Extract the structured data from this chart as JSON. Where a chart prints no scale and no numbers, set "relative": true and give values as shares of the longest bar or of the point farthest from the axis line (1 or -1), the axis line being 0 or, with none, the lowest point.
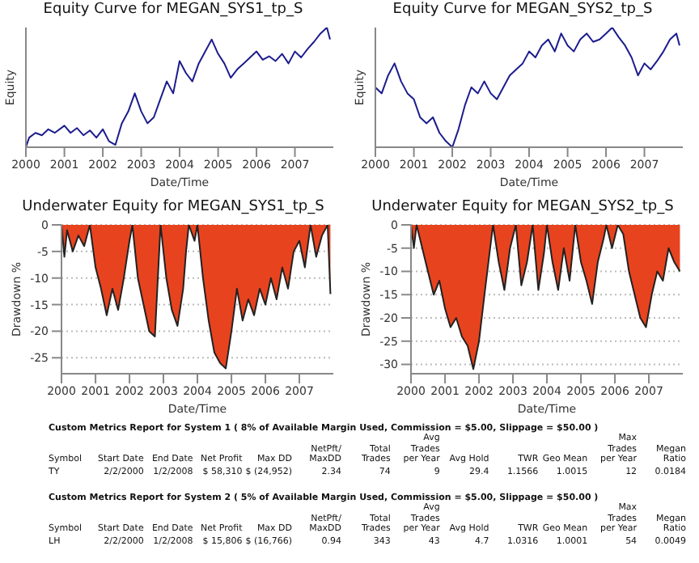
{
  "chart_data": [
    {
      "type": "line",
      "title": "Equity Curve for MEGAN_SYS1_tp_S",
      "xlabel": "Date/Time",
      "ylabel": "Equity",
      "relative": true,
      "color": "#1c1c8e",
      "xlim": [
        "2000-01",
        "2008-01"
      ],
      "xticks": [
        "2000",
        "2001",
        "2002",
        "2003",
        "2004",
        "2005",
        "2006",
        "2007"
      ],
      "x": [
        "2000-01",
        "2000-02",
        "2000-04",
        "2000-06",
        "2000-08",
        "2000-10",
        "2001-01",
        "2001-03",
        "2001-05",
        "2001-07",
        "2001-09",
        "2001-11",
        "2002-01",
        "2002-03",
        "2002-05",
        "2002-07",
        "2002-09",
        "2002-11",
        "2003-01",
        "2003-03",
        "2003-05",
        "2003-07",
        "2003-09",
        "2003-11",
        "2004-01",
        "2004-03",
        "2004-05",
        "2004-07",
        "2004-09",
        "2004-11",
        "2005-01",
        "2005-03",
        "2005-05",
        "2005-07",
        "2005-09",
        "2005-11",
        "2006-01",
        "2006-03",
        "2006-05",
        "2006-07",
        "2006-09",
        "2006-11",
        "2007-01",
        "2007-03",
        "2007-05",
        "2007-07",
        "2007-09",
        "2007-11",
        "2007-12"
      ],
      "values": [
        0,
        0.08,
        0.12,
        0.1,
        0.15,
        0.12,
        0.18,
        0.12,
        0.16,
        0.1,
        0.14,
        0.08,
        0.15,
        0.05,
        0.02,
        0.2,
        0.3,
        0.45,
        0.3,
        0.2,
        0.25,
        0.4,
        0.55,
        0.45,
        0.72,
        0.62,
        0.55,
        0.7,
        0.8,
        0.9,
        0.78,
        0.7,
        0.58,
        0.65,
        0.7,
        0.75,
        0.8,
        0.73,
        0.76,
        0.72,
        0.78,
        0.7,
        0.8,
        0.75,
        0.82,
        0.88,
        0.95,
        1,
        0.9
      ]
    },
    {
      "type": "line",
      "title": "Equity Curve for MEGAN_SYS2_tp_S",
      "xlabel": "Date/Time",
      "ylabel": "Equity",
      "relative": true,
      "color": "#1c1c8e",
      "xlim": [
        "2000-01",
        "2008-01"
      ],
      "xticks": [
        "2000",
        "2001",
        "2002",
        "2003",
        "2004",
        "2005",
        "2006",
        "2007"
      ],
      "x": [
        "2000-01",
        "2000-03",
        "2000-05",
        "2000-07",
        "2000-09",
        "2000-11",
        "2001-01",
        "2001-03",
        "2001-05",
        "2001-07",
        "2001-09",
        "2001-11",
        "2002-01",
        "2002-03",
        "2002-05",
        "2002-07",
        "2002-09",
        "2002-11",
        "2003-01",
        "2003-03",
        "2003-05",
        "2003-07",
        "2003-09",
        "2003-11",
        "2004-01",
        "2004-03",
        "2004-05",
        "2004-07",
        "2004-09",
        "2004-11",
        "2005-01",
        "2005-03",
        "2005-05",
        "2005-07",
        "2005-09",
        "2005-11",
        "2006-01",
        "2006-03",
        "2006-05",
        "2006-07",
        "2006-09",
        "2006-11",
        "2007-01",
        "2007-03",
        "2007-05",
        "2007-07",
        "2007-09",
        "2007-11",
        "2007-12"
      ],
      "values": [
        0.5,
        0.45,
        0.6,
        0.7,
        0.55,
        0.45,
        0.4,
        0.25,
        0.2,
        0.25,
        0.12,
        0.05,
        0,
        0.15,
        0.35,
        0.5,
        0.45,
        0.55,
        0.45,
        0.4,
        0.5,
        0.6,
        0.65,
        0.7,
        0.8,
        0.75,
        0.85,
        0.9,
        0.8,
        0.95,
        0.85,
        0.8,
        0.9,
        0.95,
        0.88,
        0.9,
        0.95,
        1,
        0.92,
        0.85,
        0.75,
        0.6,
        0.7,
        0.65,
        0.72,
        0.8,
        0.9,
        0.95,
        0.85
      ]
    },
    {
      "type": "area",
      "title": "Underwater Equity for MEGAN_SYS1_tp_S",
      "xlabel": "Date/Time",
      "ylabel": "Drawdown %",
      "color": "#e8431f",
      "grid": "y",
      "xlim": [
        "2000-01",
        "2008-01"
      ],
      "xticks": [
        "2000",
        "2001",
        "2002",
        "2003",
        "2004",
        "2005",
        "2006",
        "2007"
      ],
      "ylim": [
        -28,
        0
      ],
      "yticks": [
        0,
        -5,
        -10,
        -15,
        -20,
        -25
      ],
      "x": [
        "2000-01",
        "2000-02",
        "2000-03",
        "2000-05",
        "2000-07",
        "2000-09",
        "2000-11",
        "2001-01",
        "2001-03",
        "2001-05",
        "2001-07",
        "2001-09",
        "2001-11",
        "2002-01",
        "2002-02",
        "2002-04",
        "2002-06",
        "2002-08",
        "2002-10",
        "2002-12",
        "2003-02",
        "2003-04",
        "2003-06",
        "2003-08",
        "2003-09",
        "2003-10",
        "2003-12",
        "2004-01",
        "2004-03",
        "2004-05",
        "2004-07",
        "2004-09",
        "2004-11",
        "2005-01",
        "2005-03",
        "2005-05",
        "2005-07",
        "2005-09",
        "2005-11",
        "2006-01",
        "2006-03",
        "2006-05",
        "2006-07",
        "2006-09",
        "2006-11",
        "2007-01",
        "2007-03",
        "2007-05",
        "2007-07",
        "2007-09",
        "2007-11",
        "2007-12"
      ],
      "values": [
        0,
        -6,
        -1,
        -5,
        -2,
        -4,
        0,
        -8,
        -12,
        -17,
        -12,
        -16,
        -10,
        -3,
        0,
        -10,
        -15,
        -20,
        -21,
        0,
        -10,
        -16,
        -19,
        -12,
        -5,
        0,
        -3,
        0,
        -10,
        -18,
        -24,
        -26,
        -27,
        -20,
        -12,
        -18,
        -14,
        -17,
        -12,
        -15,
        -10,
        -14,
        -8,
        -12,
        -5,
        -3,
        -8,
        0,
        -6,
        -2,
        0,
        -13
      ]
    },
    {
      "type": "area",
      "title": "Underwater Equity for MEGAN_SYS2_tp_S",
      "xlabel": "Date/Time",
      "ylabel": "Drawdown %",
      "color": "#e8431f",
      "grid": "y",
      "xlim": [
        "2000-01",
        "2008-01"
      ],
      "xticks": [
        "2000",
        "2001",
        "2002",
        "2003",
        "2004",
        "2005",
        "2006",
        "2007"
      ],
      "ylim": [
        -32,
        0
      ],
      "yticks": [
        0,
        -5,
        -10,
        -15,
        -20,
        -25,
        -30
      ],
      "x": [
        "2000-01",
        "2000-02",
        "2000-03",
        "2000-05",
        "2000-07",
        "2000-09",
        "2000-11",
        "2001-01",
        "2001-03",
        "2001-05",
        "2001-07",
        "2001-09",
        "2001-11",
        "2002-01",
        "2002-03",
        "2002-05",
        "2002-06",
        "2002-08",
        "2002-10",
        "2002-12",
        "2003-02",
        "2003-04",
        "2003-06",
        "2003-08",
        "2003-10",
        "2003-12",
        "2004-01",
        "2004-03",
        "2004-05",
        "2004-07",
        "2004-09",
        "2004-11",
        "2005-01",
        "2005-03",
        "2005-05",
        "2005-07",
        "2005-09",
        "2005-10",
        "2005-12",
        "2006-02",
        "2006-04",
        "2006-06",
        "2006-08",
        "2006-10",
        "2006-12",
        "2007-02",
        "2007-04",
        "2007-06",
        "2007-08",
        "2007-10",
        "2007-12"
      ],
      "values": [
        0,
        -5,
        0,
        -5,
        -10,
        -15,
        -12,
        -18,
        -22,
        -20,
        -24,
        -26,
        -31,
        -25,
        -15,
        -5,
        0,
        -8,
        -14,
        -5,
        0,
        -13,
        -8,
        0,
        -14,
        -6,
        0,
        -8,
        -14,
        -5,
        -12,
        0,
        -8,
        -12,
        -17,
        -8,
        -3,
        0,
        -5,
        0,
        -2,
        -10,
        -15,
        -20,
        -22,
        -15,
        -10,
        -12,
        -5,
        -8,
        -10
      ]
    },
    {
      "type": "other",
      "title": "Custom Metrics Report for System 1 ( 8% of Available Margin Used,  Commission = $5.00, Slippage = $50.00 )",
      "annotations": [
        "Symbol",
        "Start Date",
        "End Date",
        "Net Profit",
        "Max DD",
        "NetPft/ MaxDD",
        "Total Trades",
        "Avg Trades per Year",
        "Avg Hold",
        "TWR",
        "Geo Mean",
        "Max Trades per Year",
        "Megan Ratio",
        "TY",
        "2/2/2000",
        "1/2/2008",
        "$ 58,310",
        "$ (24,952)",
        "2.34",
        "74",
        "9",
        "29.4",
        "1.1566",
        "1.0015",
        "12",
        "0.0184"
      ]
    },
    {
      "type": "other",
      "title": "Custom Metrics Report for System 2 ( 5% of Available Margin Used,  Commission = $5.00, Slippage = $50.00 )",
      "annotations": [
        "Symbol",
        "Start Date",
        "End Date",
        "Net Profit",
        "Max DD",
        "NetPft/ MaxDD",
        "Total Trades",
        "Avg Trades per Year",
        "Avg Hold",
        "TWR",
        "Geo Mean",
        "Max Trades per Year",
        "Megan Ratio",
        "LH",
        "2/2/2000",
        "1/2/2008",
        "$ 15,806",
        "$ (16,766)",
        "0.94",
        "343",
        "43",
        "4.7",
        "1.0316",
        "1.0001",
        "54",
        "0.0049"
      ]
    }
  ]
}
